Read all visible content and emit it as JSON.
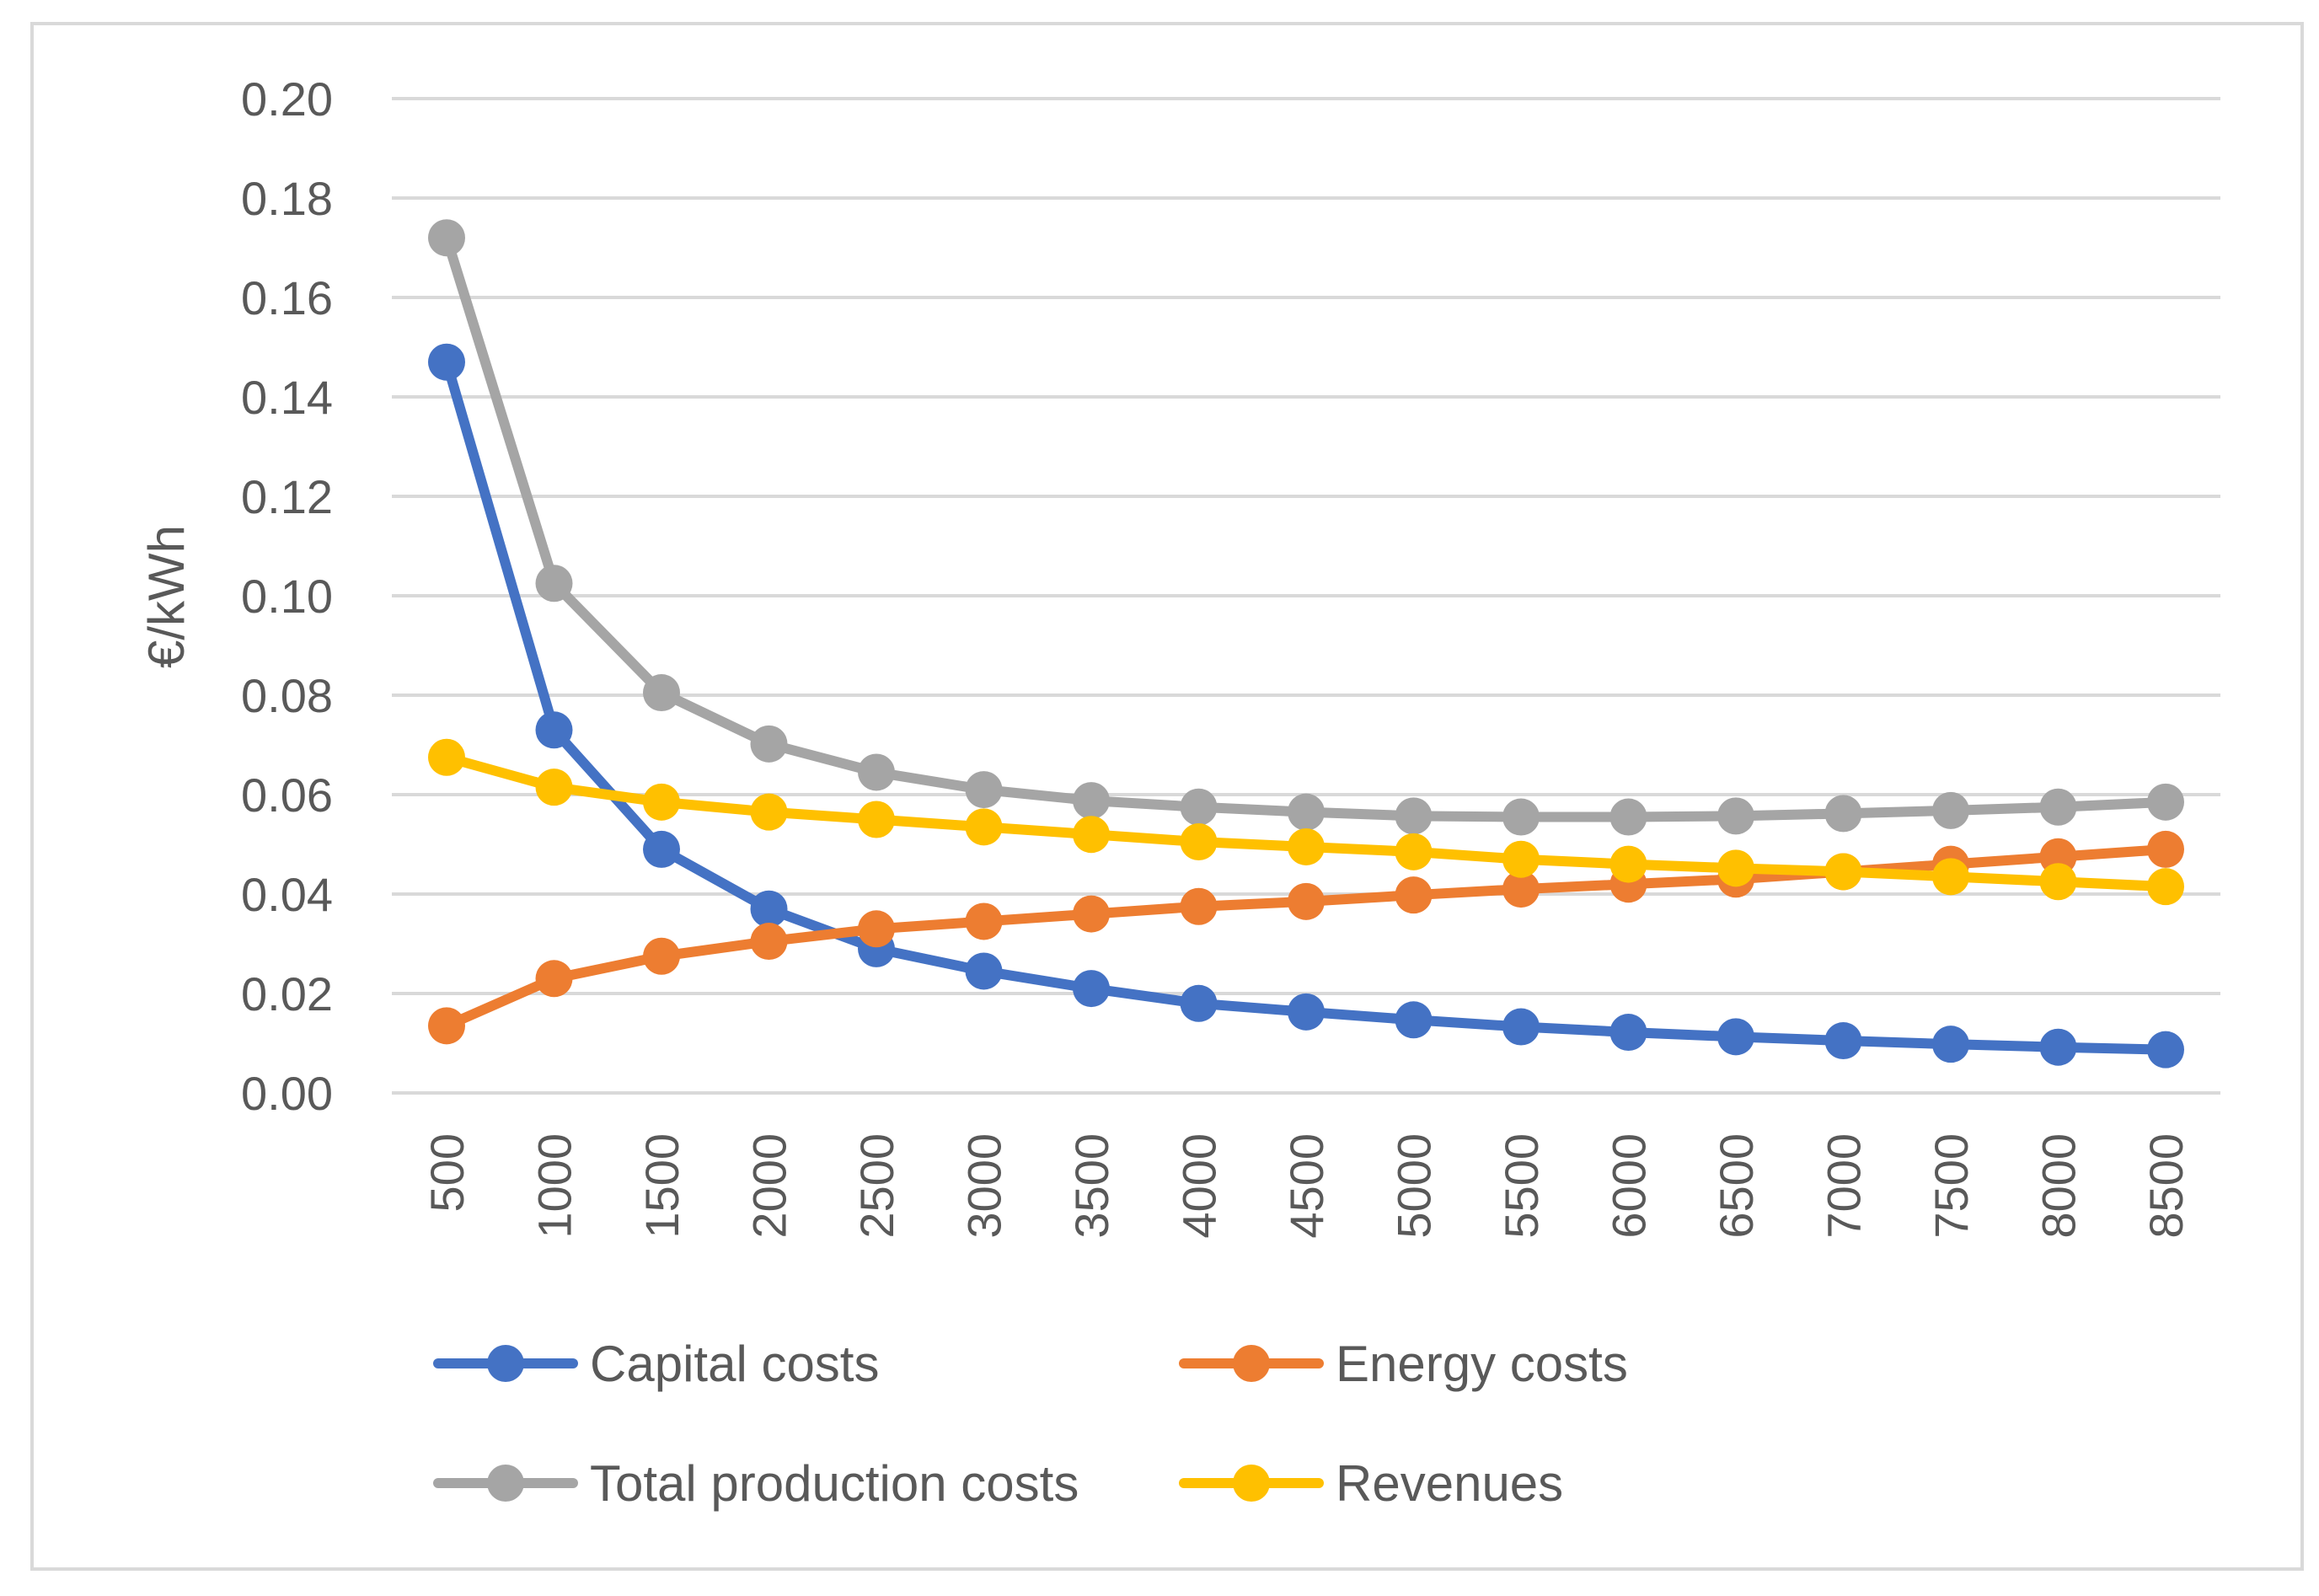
{
  "chart_data": {
    "type": "line",
    "title": "",
    "xlabel": "",
    "ylabel": "€/kWh",
    "ylim": [
      0,
      0.2
    ],
    "ytick_step": 0.02,
    "yticks": [
      "0.00",
      "0.02",
      "0.04",
      "0.06",
      "0.08",
      "0.10",
      "0.12",
      "0.14",
      "0.16",
      "0.18",
      "0.20"
    ],
    "grid": true,
    "legend_position": "bottom",
    "categories": [
      "500",
      "1000",
      "1500",
      "2000",
      "2500",
      "3000",
      "3500",
      "4000",
      "4500",
      "5000",
      "5500",
      "6000",
      "6500",
      "7000",
      "7500",
      "8000",
      "8500"
    ],
    "series": [
      {
        "name": "Capital costs",
        "color": "#4472C4",
        "values": [
          0.147,
          0.073,
          0.049,
          0.037,
          0.029,
          0.0245,
          0.021,
          0.018,
          0.0163,
          0.0147,
          0.0133,
          0.0122,
          0.0113,
          0.0105,
          0.0098,
          0.0092,
          0.0087
        ]
      },
      {
        "name": "Energy costs",
        "color": "#ED7D31",
        "values": [
          0.0135,
          0.023,
          0.0275,
          0.0305,
          0.033,
          0.0345,
          0.036,
          0.0375,
          0.0385,
          0.0398,
          0.041,
          0.042,
          0.043,
          0.0445,
          0.046,
          0.0475,
          0.049
        ]
      },
      {
        "name": "Total production costs",
        "color": "#A5A5A5",
        "values": [
          0.172,
          0.1025,
          0.0805,
          0.0702,
          0.0645,
          0.061,
          0.0588,
          0.0575,
          0.0565,
          0.0557,
          0.0555,
          0.0555,
          0.0557,
          0.0562,
          0.0568,
          0.0575,
          0.0585
        ]
      },
      {
        "name": "Revenues",
        "color": "#FFC000",
        "values": [
          0.0675,
          0.0615,
          0.0585,
          0.0565,
          0.055,
          0.0535,
          0.052,
          0.0505,
          0.0495,
          0.0485,
          0.047,
          0.046,
          0.0452,
          0.0445,
          0.0435,
          0.0425,
          0.0415
        ]
      }
    ]
  }
}
